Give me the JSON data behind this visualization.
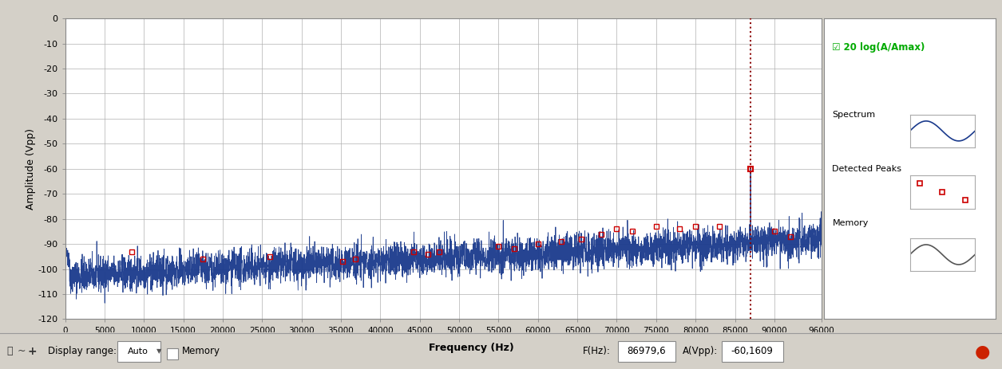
{
  "xlabel": "Frequency (Hz)",
  "ylabel": "Amplitude (Vpp)",
  "xlim": [
    0,
    96000
  ],
  "ylim": [
    -120,
    0
  ],
  "yticks": [
    0,
    -10,
    -20,
    -30,
    -40,
    -50,
    -60,
    -70,
    -80,
    -90,
    -100,
    -110,
    -120
  ],
  "xticks": [
    0,
    5000,
    10000,
    15000,
    20000,
    25000,
    30000,
    35000,
    40000,
    45000,
    50000,
    55000,
    60000,
    65000,
    70000,
    75000,
    80000,
    85000,
    90000,
    96000
  ],
  "xtick_labels": [
    "0",
    "5000",
    "10000",
    "15000",
    "20000",
    "25000",
    "30000",
    "35000",
    "40000",
    "45000",
    "50000",
    "55000",
    "60000",
    "65000",
    "70000",
    "75000",
    "80000",
    "85000",
    "90000",
    "96000"
  ],
  "signal_freq": 86979.6,
  "signal_amp": -60.1609,
  "line_color": "#1a3a8c",
  "peak_marker_color": "#cc0000",
  "vline_color": "#8b0000",
  "bg_color": "#d4d0c8",
  "plot_bg_color": "#ffffff",
  "grid_color": "#b0b0b0",
  "label_color_green": "#00aa00",
  "label_text": "20 log(A/Amax)",
  "checkbox_text": "☑",
  "status_bar_bg": "#d4d0c8",
  "f_display": "86979,6",
  "a_display": "-60,1609",
  "detected_peaks": [
    [
      8500,
      -93
    ],
    [
      17500,
      -96
    ],
    [
      26000,
      -95
    ],
    [
      35200,
      -97
    ],
    [
      36800,
      -96
    ],
    [
      44200,
      -93
    ],
    [
      46000,
      -94
    ],
    [
      47500,
      -93
    ],
    [
      55000,
      -91
    ],
    [
      57000,
      -92
    ],
    [
      60000,
      -90
    ],
    [
      63000,
      -89
    ],
    [
      65500,
      -88
    ],
    [
      68000,
      -86
    ],
    [
      70000,
      -84
    ],
    [
      72000,
      -85
    ],
    [
      75000,
      -83
    ],
    [
      78000,
      -84
    ],
    [
      80000,
      -83
    ],
    [
      83000,
      -83
    ],
    [
      86979,
      -60
    ],
    [
      90000,
      -85
    ],
    [
      92000,
      -87
    ]
  ],
  "noise_seed": 42,
  "noise_base_low": -103,
  "noise_base_high": -88,
  "noise_std": 3.5
}
